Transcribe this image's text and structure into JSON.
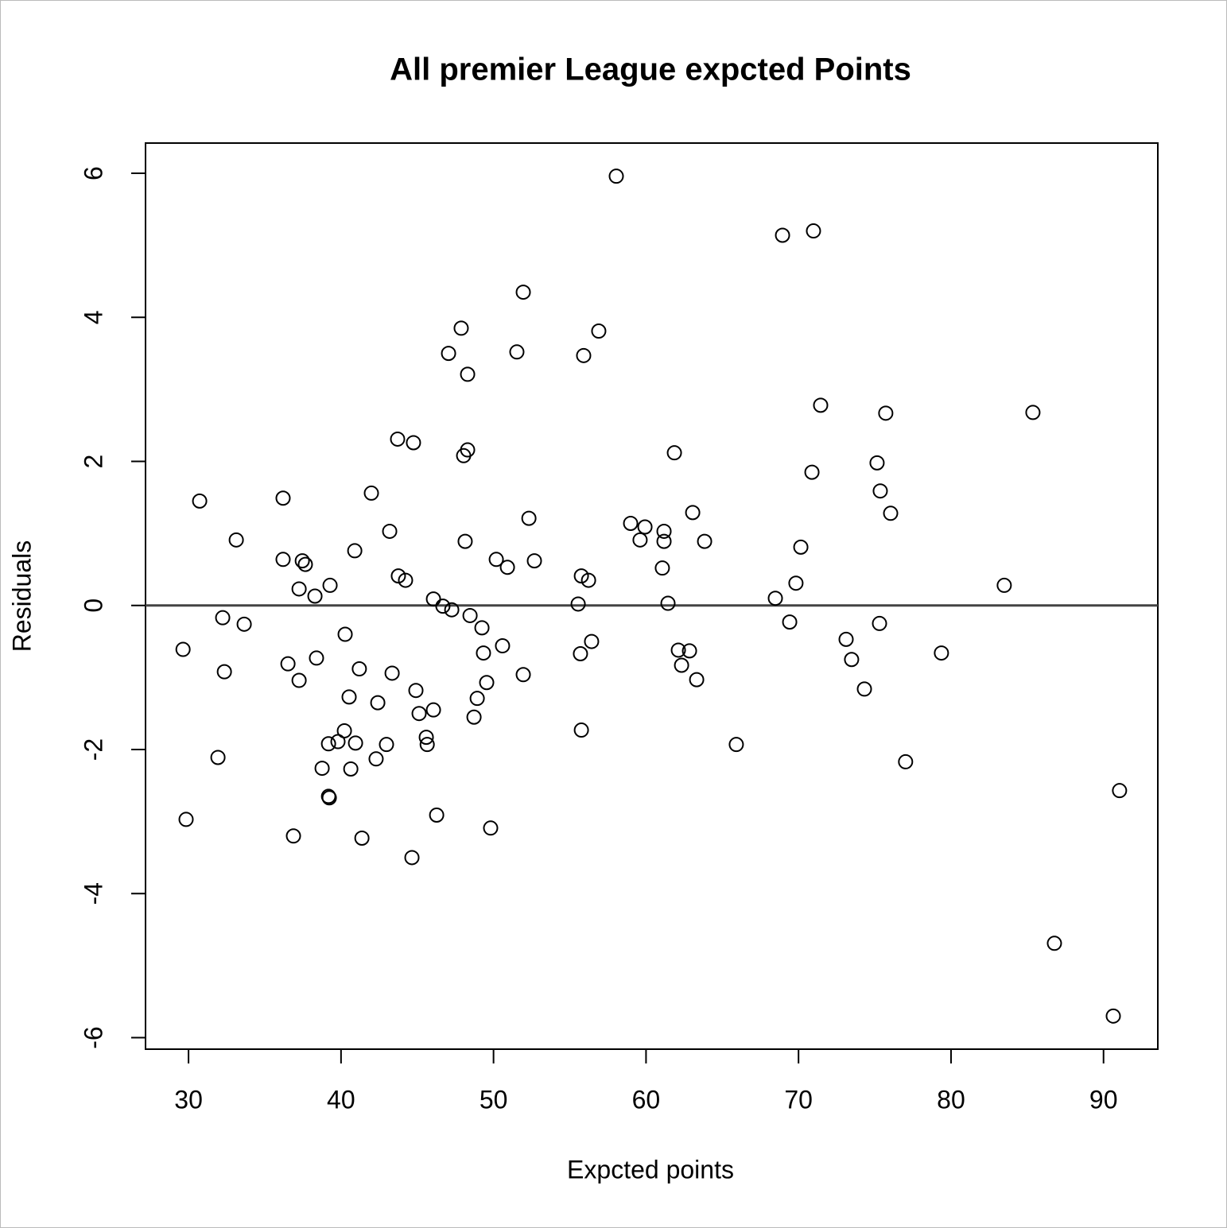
{
  "chart_data": {
    "type": "scatter",
    "title": "All premier League expcted Points",
    "x_label": "Expcted points",
    "y_label": "Residuals",
    "xlim": [
      27.18,
      93.56
    ],
    "ylim": [
      -6.16,
      6.42
    ],
    "xticks": [
      30,
      40,
      50,
      60,
      70,
      80,
      90
    ],
    "yticks": [
      -6,
      -4,
      -2,
      0,
      2,
      4,
      6
    ],
    "reference_line": 0,
    "color": "#000000",
    "series": [
      {
        "name": "Residuals",
        "color": "#000000",
        "x": [
          58.05,
          68.95,
          70.98,
          51.95,
          47.88,
          56.9,
          47.05,
          51.53,
          55.91,
          48.3,
          71.45,
          75.72,
          85.37,
          43.71,
          44.75,
          48.3,
          48.04,
          61.86,
          75.15,
          70.88,
          75.36,
          30.73,
          36.2,
          41.99,
          63.06,
          76.04,
          52.32,
          58.99,
          59.93,
          43.19,
          61.18,
          33.13,
          48.14,
          59.61,
          61.18,
          63.84,
          40.9,
          70.15,
          36.2,
          37.46,
          37.66,
          50.18,
          50.91,
          52.68,
          61.07,
          43.76,
          44.23,
          55.76,
          56.23,
          37.25,
          39.28,
          38.29,
          69.83,
          83.49,
          46.06,
          46.68,
          47.26,
          55.55,
          61.44,
          68.48,
          32.24,
          33.65,
          48.46,
          49.24,
          69.42,
          75.31,
          29.64,
          40.27,
          56.43,
          73.12,
          49.34,
          50.59,
          55.7,
          62.12,
          62.85,
          79.37,
          36.52,
          38.39,
          73.48,
          32.35,
          41.2,
          43.35,
          51.95,
          62.33,
          37.25,
          49.55,
          63.32,
          74.32,
          44.91,
          40.53,
          48.93,
          42.41,
          46.06,
          45.12,
          48.72,
          55.76,
          40.22,
          45.59,
          39.8,
          39.18,
          40.95,
          42.98,
          45.65,
          65.92,
          31.93,
          42.3,
          77.02,
          38.76,
          40.64,
          91.05,
          39.18,
          39.23,
          29.84,
          46.27,
          49.81,
          36.88,
          41.37,
          44.65,
          86.78,
          90.64
        ],
        "values": [
          5.96,
          5.14,
          5.2,
          4.35,
          3.85,
          3.81,
          3.5,
          3.52,
          3.47,
          3.21,
          2.78,
          2.67,
          2.68,
          2.31,
          2.26,
          2.16,
          2.08,
          2.12,
          1.98,
          1.85,
          1.59,
          1.45,
          1.49,
          1.56,
          1.29,
          1.28,
          1.21,
          1.14,
          1.09,
          1.03,
          1.03,
          0.91,
          0.89,
          0.91,
          0.89,
          0.89,
          0.76,
          0.81,
          0.64,
          0.62,
          0.57,
          0.64,
          0.53,
          0.62,
          0.52,
          0.41,
          0.35,
          0.41,
          0.35,
          0.23,
          0.28,
          0.13,
          0.31,
          0.28,
          0.09,
          -0.01,
          -0.06,
          0.02,
          0.03,
          0.1,
          -0.17,
          -0.26,
          -0.14,
          -0.31,
          -0.23,
          -0.25,
          -0.61,
          -0.4,
          -0.5,
          -0.47,
          -0.66,
          -0.56,
          -0.67,
          -0.62,
          -0.63,
          -0.66,
          -0.81,
          -0.73,
          -0.75,
          -0.92,
          -0.88,
          -0.94,
          -0.96,
          -0.83,
          -1.04,
          -1.07,
          -1.03,
          -1.16,
          -1.18,
          -1.27,
          -1.29,
          -1.35,
          -1.45,
          -1.5,
          -1.55,
          -1.73,
          -1.74,
          -1.83,
          -1.89,
          -1.92,
          -1.91,
          -1.93,
          -1.93,
          -1.93,
          -2.11,
          -2.13,
          -2.17,
          -2.26,
          -2.27,
          -2.57,
          -2.65,
          -2.67,
          -2.97,
          -2.91,
          -3.09,
          -3.2,
          -3.23,
          -3.5,
          -4.69,
          -5.7
        ]
      }
    ]
  }
}
